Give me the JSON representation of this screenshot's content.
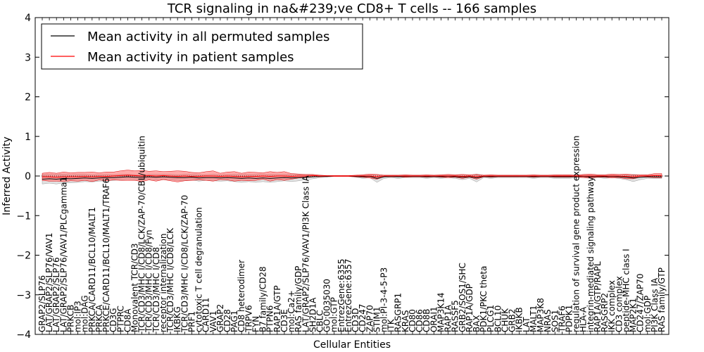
{
  "chart_data": {
    "type": "line",
    "title": "TCR signaling in na&#239;ve CD8+ T cells -- 166 samples",
    "xlabel": "Cellular Entities",
    "ylabel": "Inferred Activity",
    "ylim": [
      -4,
      4
    ],
    "yticks": [
      "4",
      "3",
      "2",
      "1",
      "0",
      "−1",
      "−2",
      "−3",
      "−4"
    ],
    "yticks_values": [
      4,
      3,
      2,
      1,
      0,
      -1,
      -2,
      -3,
      -4
    ],
    "legend_position": "top-left",
    "categories": [
      "GRAP2/SLP76",
      "LAT/GRAP2/SLP76/VAV1",
      "LAT/GRAP2/SLP76",
      "LAT/GRAP2/SLP76/VAV1/PLCgamma1",
      "PRKCB",
      "mol:IP3",
      "mol:DAG",
      "PRKCA/CARD11/BCL10/MALT1",
      "PRKCA",
      "PRKCE/CARD11/BCL10/MALT1/TRAF6",
      "CD3G",
      "PTPRC",
      "CD8A",
      "Monovalent TCR/CD3",
      "TCR/CD3/MHC I/CD8/LCK/ZAP-70/CBL/ubiquitin",
      "TCR/CD3/MHC I/CD8/Fyn",
      "TCR/CD3/MHC I/CD8",
      "receptor internalization",
      "TCR/CD3/MHC I/CD8/LCK",
      "IKBKG",
      "TCR/CD3/MHC I/CD8/LCK/ZAP-70",
      "PRF1",
      "cytotoxic T cell degranulation",
      "CARD11",
      "VAV1",
      "GRAP2",
      "CD28",
      "PAG1",
      "CD8 heterodimer",
      "TRPV6",
      "FYN",
      "B7 family/CD28",
      "PTPN6",
      "RAP1A/GTP",
      "CD3E",
      "mol:Ca2+",
      "RAS family/GDP",
      "LAT/GRAP2/SLP76/VAV1/PI3K Class IA",
      "SH2D1A",
      "CBLC",
      "GO:0035030",
      "mol:GTP",
      "EntrezGene:6355",
      "EntrezGene:6357",
      "CD3D",
      "CD247",
      "ZAP70",
      "STIM1",
      "mol:PI-3-4-5-P3",
      "ITK",
      "RASGRP1",
      "KRAS",
      "CD80",
      "CD86",
      "CD8B",
      "ORAI1",
      "MAP3K14",
      "RAP1A",
      "RASSF5",
      "GRB2/SOS1/SHC",
      "RAP1A/GDP",
      "BAX",
      "PDK1/PKC theta",
      "PLCG1",
      "BCL10",
      "CHUK",
      "GRB2",
      "IKBKB",
      "LAT",
      "MALT1",
      "MAP3K8",
      "NRAS",
      "SOS1",
      "TRAF6",
      "PDPK1",
      "regulation of survival gene product expression",
      "HLA-A",
      "integrin-mediated signaling pathway",
      "RAP1A/GTP/RAPL",
      "RASGRP2",
      "IKK complex",
      "CD3 complex",
      "peptide-MHC class I",
      "MAP2K1",
      "CD247/ZAP70",
      "mol:GDP",
      "PI3K Class IA",
      "RAS family/GTP"
    ],
    "series": [
      {
        "name": "Mean activity in all permuted samples",
        "color": "#000000",
        "values": [
          -0.08,
          -0.07,
          -0.08,
          -0.06,
          -0.07,
          -0.06,
          -0.05,
          -0.06,
          -0.05,
          -0.04,
          -0.04,
          -0.03,
          -0.02,
          -0.03,
          -0.03,
          -0.02,
          -0.03,
          -0.02,
          -0.03,
          -0.04,
          -0.04,
          -0.03,
          -0.05,
          -0.04,
          -0.04,
          -0.05,
          -0.04,
          -0.05,
          -0.06,
          -0.05,
          -0.06,
          -0.05,
          -0.06,
          -0.05,
          -0.04,
          -0.05,
          -0.04,
          -0.03,
          -0.02,
          -0.01,
          -0.01,
          0.0,
          0.0,
          0.0,
          -0.01,
          -0.02,
          -0.01,
          -0.06,
          -0.02,
          -0.01,
          -0.02,
          -0.01,
          -0.01,
          -0.01,
          -0.02,
          -0.01,
          -0.02,
          -0.01,
          -0.02,
          -0.03,
          -0.02,
          -0.05,
          -0.01,
          -0.02,
          -0.01,
          -0.01,
          -0.01,
          -0.01,
          -0.01,
          -0.02,
          -0.01,
          -0.01,
          -0.02,
          -0.02,
          -0.02,
          -0.01,
          -0.01,
          -0.02,
          -0.01,
          -0.02,
          -0.01,
          -0.02,
          -0.03,
          -0.05,
          -0.03,
          -0.02,
          -0.02,
          -0.02
        ]
      },
      {
        "name": "Mean activity in patient samples",
        "color": "#ff0000",
        "values": [
          -0.02,
          -0.02,
          -0.03,
          -0.02,
          -0.02,
          -0.02,
          -0.01,
          -0.02,
          -0.01,
          -0.01,
          0.0,
          0.01,
          0.02,
          0.01,
          0.0,
          0.01,
          0.0,
          0.01,
          0.0,
          -0.01,
          0.0,
          -0.01,
          -0.01,
          0.0,
          0.0,
          -0.01,
          0.0,
          -0.01,
          -0.02,
          -0.01,
          -0.01,
          0.0,
          -0.01,
          0.0,
          0.0,
          -0.01,
          0.0,
          0.0,
          0.01,
          0.0,
          0.0,
          0.0,
          0.0,
          0.0,
          0.0,
          0.0,
          0.0,
          -0.02,
          0.0,
          0.0,
          0.0,
          0.0,
          0.0,
          0.0,
          0.0,
          0.0,
          0.0,
          0.0,
          0.0,
          -0.01,
          0.0,
          -0.02,
          0.0,
          0.0,
          0.0,
          0.0,
          0.0,
          0.0,
          0.0,
          0.0,
          0.0,
          0.0,
          0.0,
          0.0,
          0.0,
          0.0,
          0.0,
          0.0,
          0.0,
          0.0,
          0.0,
          0.0,
          -0.01,
          -0.02,
          0.0,
          0.0,
          0.01,
          0.01
        ]
      },
      {
        "name": "permuted spread",
        "color": "#dddddd",
        "values": [
          0.12,
          0.11,
          0.12,
          0.11,
          0.1,
          0.1,
          0.09,
          0.09,
          0.08,
          0.08,
          0.07,
          0.07,
          0.06,
          0.06,
          0.06,
          0.06,
          0.07,
          0.06,
          0.07,
          0.07,
          0.08,
          0.07,
          0.08,
          0.07,
          0.08,
          0.08,
          0.08,
          0.09,
          0.1,
          0.09,
          0.1,
          0.09,
          0.1,
          0.09,
          0.08,
          0.09,
          0.08,
          0.06,
          0.05,
          0.03,
          0.02,
          0.01,
          0.01,
          0.01,
          0.02,
          0.04,
          0.03,
          0.1,
          0.04,
          0.03,
          0.04,
          0.03,
          0.03,
          0.03,
          0.04,
          0.03,
          0.04,
          0.03,
          0.04,
          0.06,
          0.04,
          0.1,
          0.03,
          0.04,
          0.03,
          0.03,
          0.03,
          0.03,
          0.03,
          0.04,
          0.03,
          0.03,
          0.04,
          0.04,
          0.04,
          0.03,
          0.03,
          0.04,
          0.03,
          0.04,
          0.03,
          0.04,
          0.06,
          0.09,
          0.06,
          0.04,
          0.04,
          0.04
        ]
      },
      {
        "name": "patient spread",
        "color": "#ff5555",
        "values": [
          0.09,
          0.11,
          0.1,
          0.12,
          0.1,
          0.11,
          0.1,
          0.12,
          0.09,
          0.11,
          0.1,
          0.12,
          0.13,
          0.12,
          0.14,
          0.11,
          0.13,
          0.1,
          0.12,
          0.14,
          0.12,
          0.1,
          0.09,
          0.11,
          0.13,
          0.08,
          0.1,
          0.12,
          0.09,
          0.11,
          0.1,
          0.08,
          0.12,
          0.09,
          0.11,
          0.07,
          0.05,
          0.04,
          0.03,
          0.02,
          0.01,
          0.01,
          0.01,
          0.01,
          0.02,
          0.03,
          0.05,
          0.06,
          0.02,
          0.02,
          0.02,
          0.03,
          0.02,
          0.02,
          0.03,
          0.02,
          0.03,
          0.04,
          0.03,
          0.05,
          0.03,
          0.06,
          0.02,
          0.03,
          0.02,
          0.02,
          0.02,
          0.02,
          0.02,
          0.03,
          0.02,
          0.02,
          0.03,
          0.03,
          0.03,
          0.02,
          0.04,
          0.05,
          0.03,
          0.03,
          0.05,
          0.04,
          0.06,
          0.05,
          0.03,
          0.03,
          0.05,
          0.05
        ]
      }
    ]
  }
}
